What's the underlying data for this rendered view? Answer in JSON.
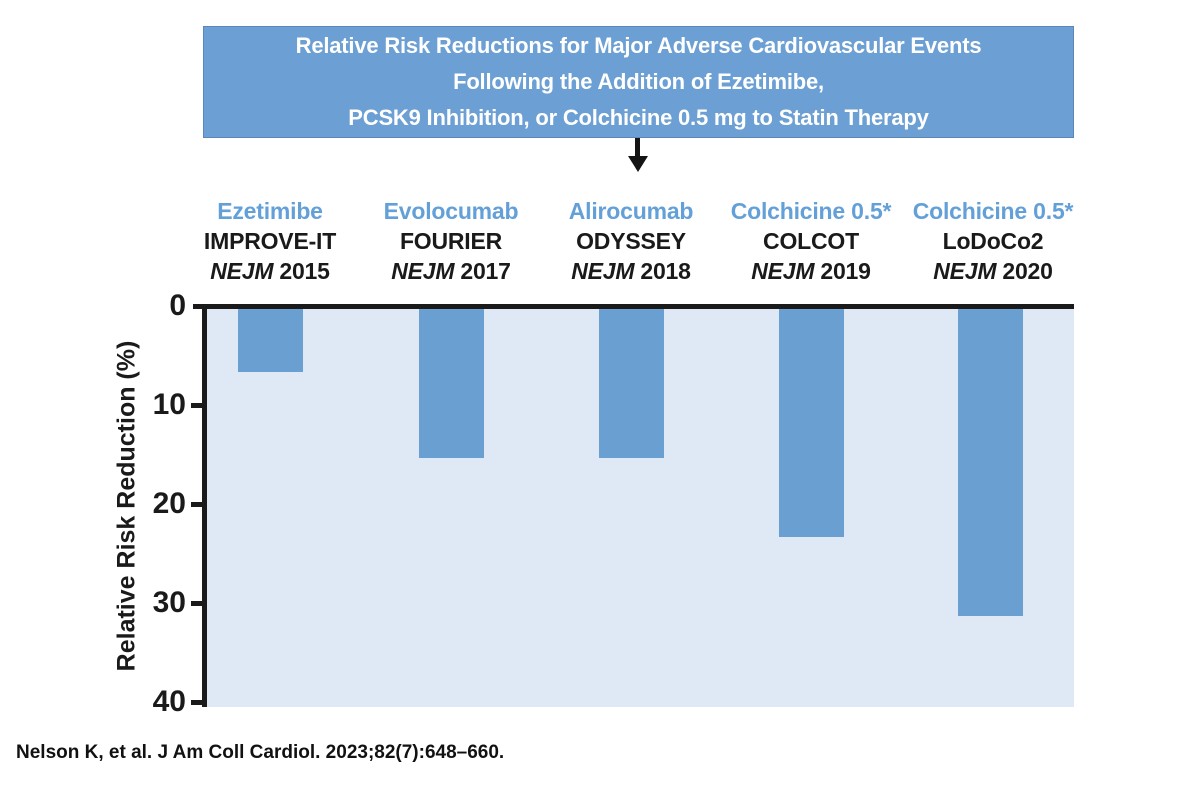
{
  "figure": {
    "title_lines": [
      "Relative Risk Reductions for Major Adverse Cardiovascular Events",
      "Following the Addition of Ezetimibe,",
      "PCSK9 Inhibition, or Colchicine 0.5 mg to Statin Therapy"
    ],
    "citation": "Nelson K, et al. J Am Coll Cardiol. 2023;82(7):648–660."
  },
  "chart_data": {
    "type": "bar",
    "direction": "downward",
    "title": "Relative Risk Reductions for Major Adverse Cardiovascular Events Following the Addition of Ezetimibe, PCSK9 Inhibition, or Colchicine 0.5 mg to Statin Therapy",
    "ylabel": "Relative Risk Reduction (%)",
    "ylim": [
      0,
      40
    ],
    "y_axis_inverted": true,
    "yticks": [
      0,
      10,
      20,
      30,
      40
    ],
    "grid": false,
    "legend_position": "none",
    "categories": [
      {
        "drug": "Ezetimibe",
        "trial": "IMPROVE-IT",
        "journal": "NEJM",
        "year": "2015"
      },
      {
        "drug": "Evolocumab",
        "trial": "FOURIER",
        "journal": "NEJM",
        "year": "2017"
      },
      {
        "drug": "Alirocumab",
        "trial": "ODYSSEY",
        "journal": "NEJM",
        "year": "2018"
      },
      {
        "drug": "Colchicine 0.5*",
        "trial": "COLCOT",
        "journal": "NEJM",
        "year": "2019"
      },
      {
        "drug": "Colchicine 0.5*",
        "trial": "LoDoCo2",
        "journal": "NEJM",
        "year": "2020"
      }
    ],
    "values": [
      6.4,
      15,
      15,
      23,
      31
    ],
    "colors": {
      "bar": "#6A9FD2",
      "plot_background": "#DEE9F5",
      "title_box_background": "#6C9FD3",
      "title_text": "#FFFFFF",
      "drug_label_blue": "#64A0D8",
      "axis": "#1A1A1A"
    }
  }
}
